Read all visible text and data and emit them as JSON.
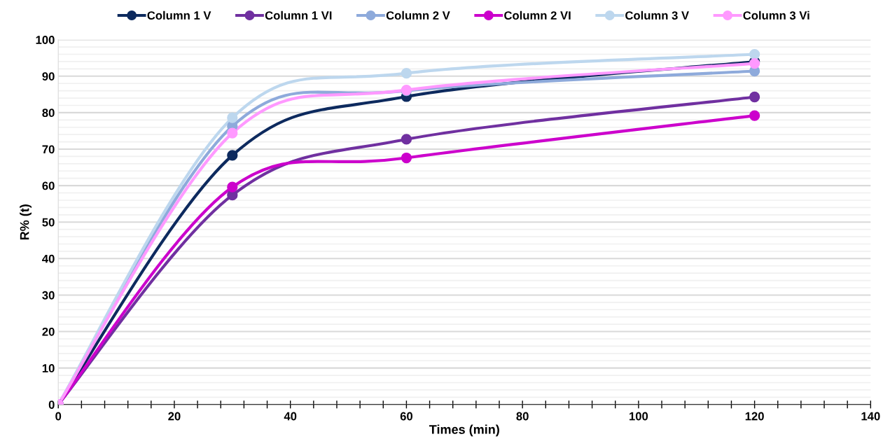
{
  "chart_data": {
    "type": "line",
    "xlabel": "Times (min)",
    "ylabel": "R% (t)",
    "x": [
      0,
      30,
      60,
      120
    ],
    "series": [
      {
        "name": "Column 1 V",
        "color": "#0d2a5e",
        "values": [
          0,
          68.3,
          84.4,
          94.0
        ]
      },
      {
        "name": "Column 1 VI",
        "color": "#7030a0",
        "values": [
          0,
          57.4,
          72.7,
          84.3
        ]
      },
      {
        "name": "Column 2 V",
        "color": "#8eaadb",
        "values": [
          0,
          76.3,
          86.0,
          91.4
        ]
      },
      {
        "name": "Column 2 VI",
        "color": "#cc00cc",
        "values": [
          0,
          59.6,
          67.6,
          79.2
        ]
      },
      {
        "name": "Column 3 V",
        "color": "#bdd7ee",
        "values": [
          0,
          78.6,
          90.8,
          96.0
        ]
      },
      {
        "name": "Column 3 Vi",
        "color": "#ff99ff",
        "values": [
          0,
          74.4,
          86.2,
          93.5
        ]
      }
    ],
    "xlim": [
      0,
      140
    ],
    "xticks": [
      0,
      20,
      40,
      60,
      80,
      100,
      120,
      140
    ],
    "ylim": [
      0,
      100
    ],
    "yticks": [
      0,
      10,
      20,
      30,
      40,
      50,
      60,
      70,
      80,
      90,
      100
    ],
    "grid": "y",
    "legend": "top",
    "marker": "circle",
    "line_style": "solid"
  }
}
